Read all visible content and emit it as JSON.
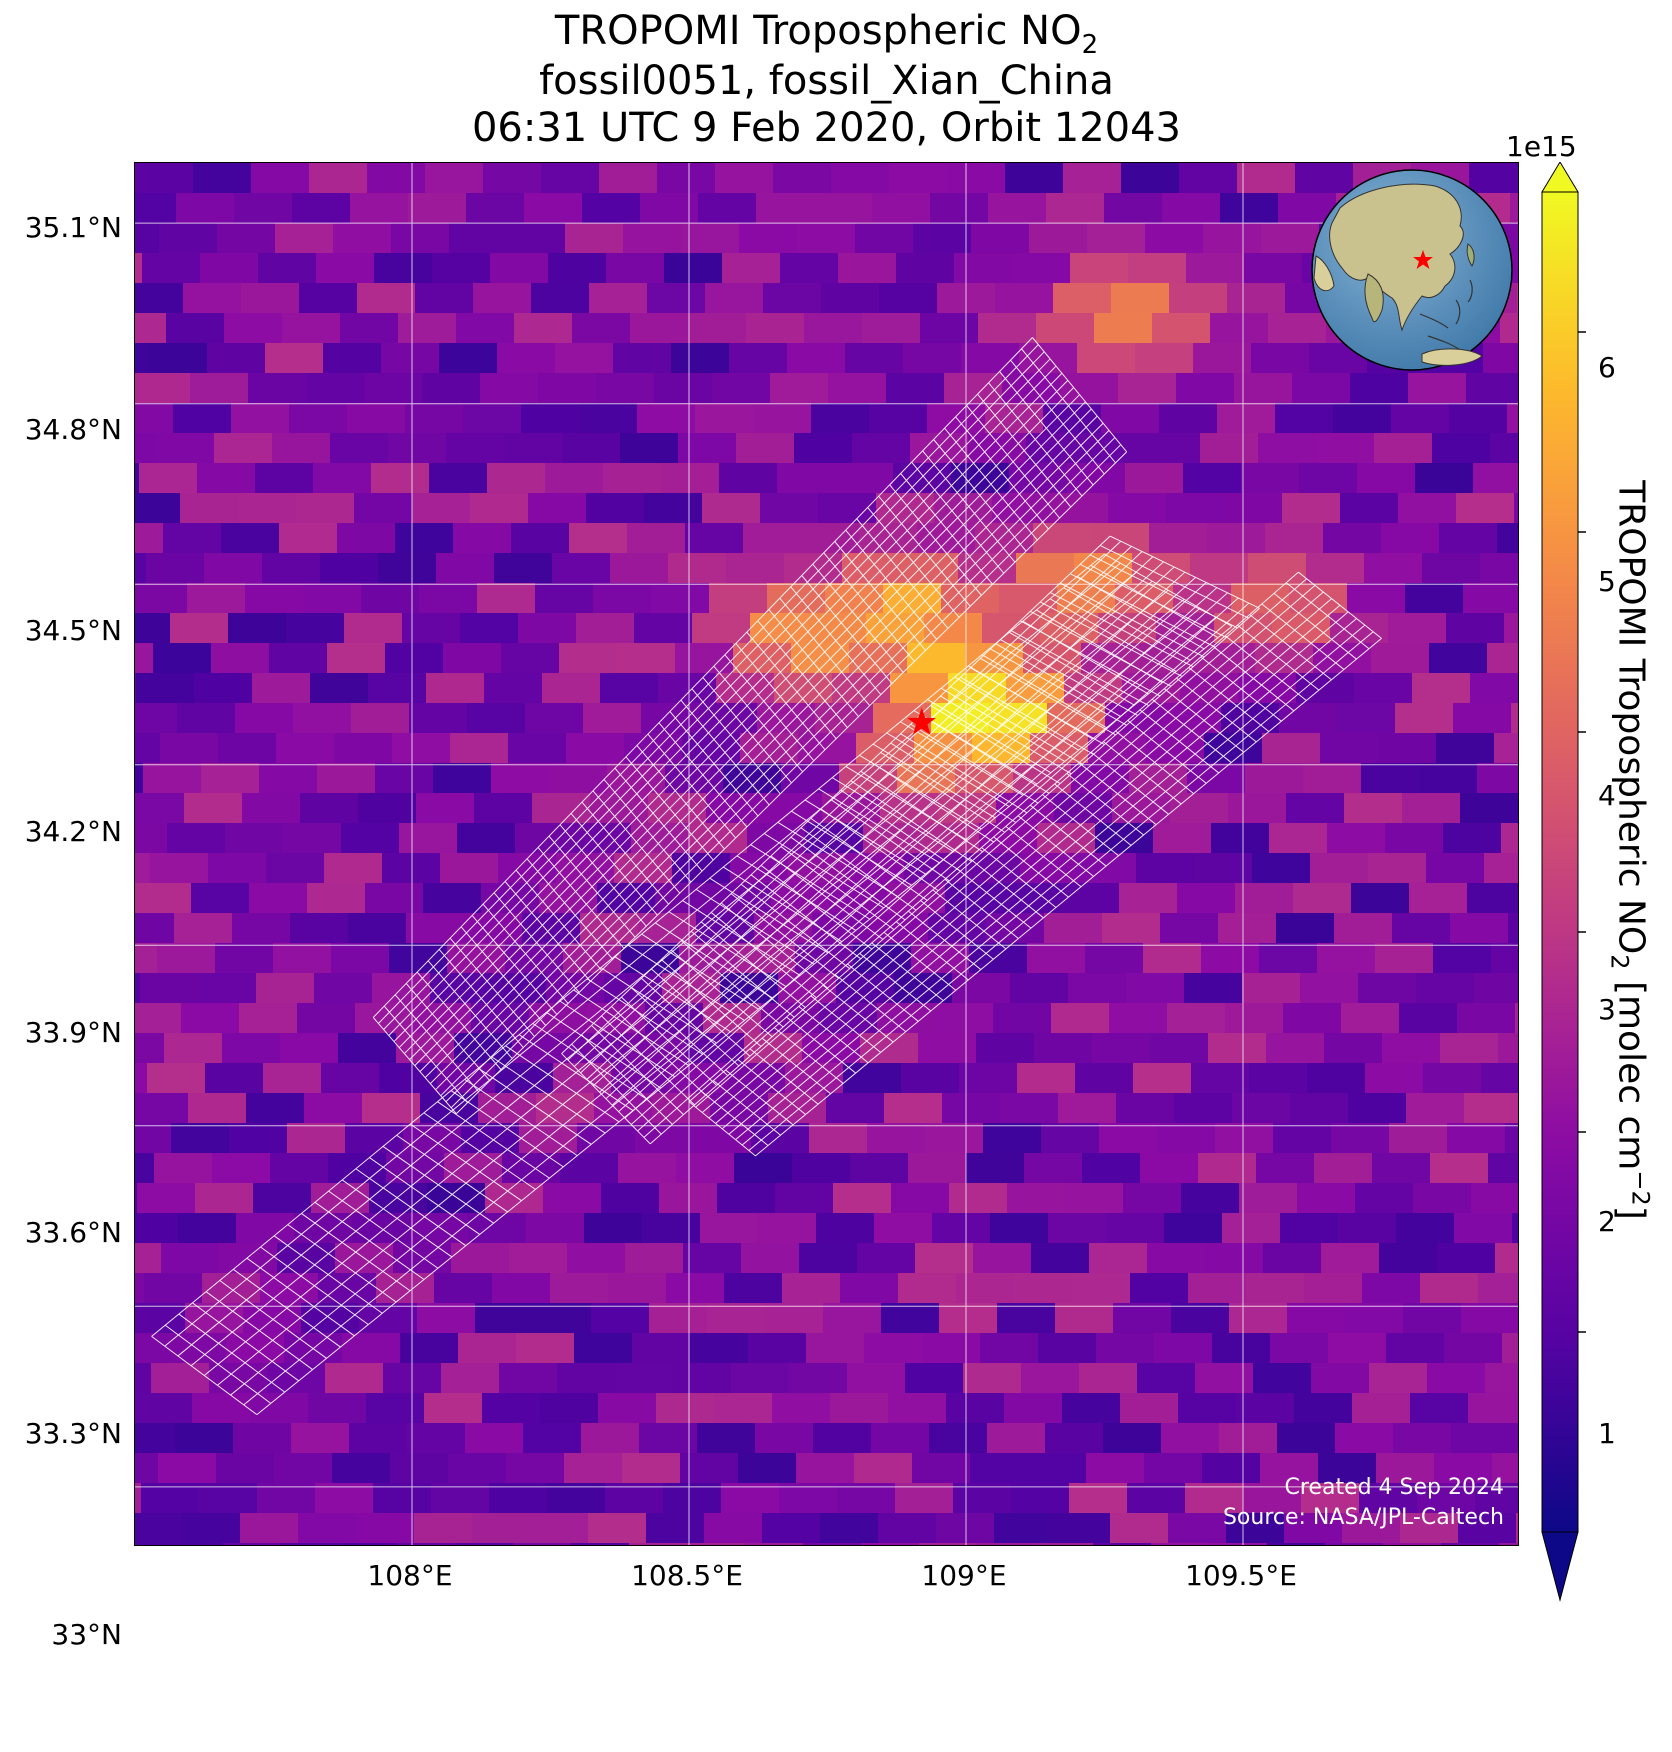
{
  "title": {
    "line1_main": "TROPOMI Tropospheric NO",
    "line1_sub": "2",
    "line2": "fossil0051, fossil_Xian_China",
    "line3": "06:31 UTC 9 Feb 2020, Orbit 12043"
  },
  "credits": {
    "created": "Created 4 Sep 2024",
    "source": "Source: NASA/JPL-Caltech"
  },
  "colorbar": {
    "exponent": "1e15",
    "ticks": [
      "1",
      "2",
      "3",
      "4",
      "5",
      "6"
    ],
    "label_main": "TROPOMI Tropospheric NO",
    "label_sub": "2",
    "label_unit": " [molec cm",
    "label_sup": "−2",
    "label_end": "]",
    "colormap": "plasma",
    "extend": "both"
  },
  "chart_data": {
    "type": "heatmap",
    "title": "TROPOMI Tropospheric NO2 fossil0051, fossil_Xian_China 06:31 UTC 9 Feb 2020, Orbit 12043",
    "xlabel": "",
    "ylabel": "",
    "x_ticks": [
      108.0,
      108.5,
      109.0,
      109.5
    ],
    "x_tick_labels": [
      "108°E",
      "108.5°E",
      "109°E",
      "109.5°E"
    ],
    "y_ticks": [
      33.0,
      33.3,
      33.6,
      33.9,
      34.2,
      34.5,
      34.8,
      35.1
    ],
    "y_tick_labels": [
      "33°N",
      "33.3°N",
      "33.6°N",
      "33.9°N",
      "34.2°N",
      "34.5°N",
      "34.8°N",
      "35.1°N"
    ],
    "xlim": [
      107.5,
      110.0
    ],
    "ylim": [
      32.9,
      35.2
    ],
    "grid": true,
    "colorbar_range_e15": [
      0.0,
      6.7
    ],
    "site_marker": {
      "label": "fossil_Xian_China",
      "lon": 108.92,
      "lat": 34.27,
      "symbol": "red star"
    },
    "hotspots_e15": [
      {
        "lon": 109.04,
        "lat": 34.29,
        "value": 6.4
      },
      {
        "lon": 108.98,
        "lat": 34.35,
        "value": 5.6
      },
      {
        "lon": 108.88,
        "lat": 34.45,
        "value": 5.3
      },
      {
        "lon": 108.72,
        "lat": 34.42,
        "value": 4.9
      },
      {
        "lon": 109.22,
        "lat": 34.5,
        "value": 4.6
      },
      {
        "lon": 108.95,
        "lat": 34.22,
        "value": 4.5
      },
      {
        "lon": 109.3,
        "lat": 34.95,
        "value": 4.2
      },
      {
        "lon": 109.55,
        "lat": 34.47,
        "value": 3.9
      }
    ],
    "background_range_e15": [
      0.6,
      3.2
    ],
    "target_grid_swaths": 3,
    "inset": "orthographic globe centered on East Asia with red star at site"
  }
}
